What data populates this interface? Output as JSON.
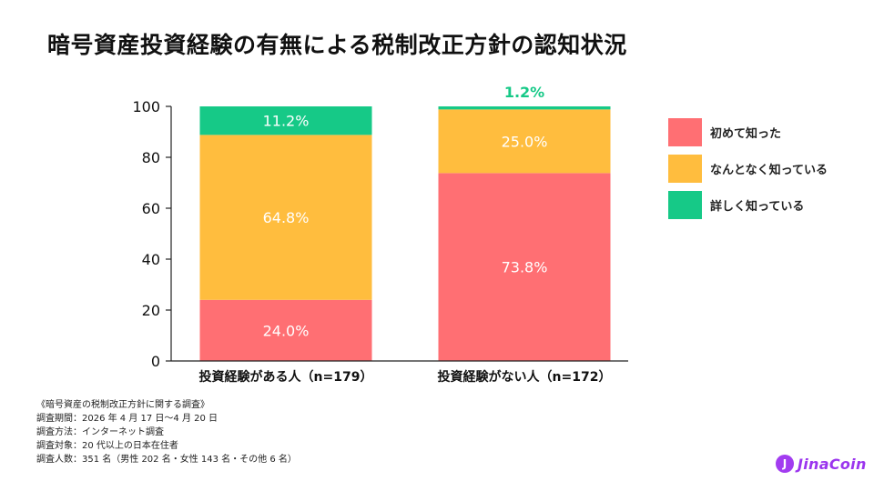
{
  "title": "暗号資産投資経験の有無による税制改正方針の認知状況",
  "colors": {
    "first_time": "#ff6f73",
    "somewhat": "#ffbd3e",
    "detailed": "#16c987",
    "axis": "#222222",
    "top_label": "#16c987"
  },
  "chart_data": {
    "type": "bar",
    "stacked": true,
    "categories": [
      "投資経験がある人（n=179）",
      "投資経験がない人（n=172）"
    ],
    "series": [
      {
        "name": "初めて知った",
        "values": [
          24.0,
          73.8
        ],
        "labels": [
          "24.0%",
          "73.8%"
        ],
        "color": "#ff6f73"
      },
      {
        "name": "なんとなく知っている",
        "values": [
          64.8,
          25.0
        ],
        "labels": [
          "64.8%",
          "25.0%"
        ],
        "color": "#ffbd3e"
      },
      {
        "name": "詳しく知っている",
        "values": [
          11.2,
          1.2
        ],
        "labels": [
          "11.2%",
          "1.2%"
        ],
        "color": "#16c987"
      }
    ],
    "ylim": [
      0,
      100
    ],
    "yticks": [
      "0",
      "20",
      "40",
      "60",
      "80",
      "100"
    ],
    "legend_position": "right",
    "grid": false
  },
  "notes": {
    "heading": "《暗号資産の税制改正方針に関する調査》",
    "period": "調査期間：2026 年 4 月 17 日〜4 月 20 日",
    "method": "調査方法：インターネット調査",
    "target": "調査対象：20 代以上の日本在住者",
    "respondents": "調査人数：351 名（男性 202 名・女性 143 名・その他 6 名）"
  },
  "logo": {
    "mark": "J",
    "text": "JinaCoin"
  }
}
